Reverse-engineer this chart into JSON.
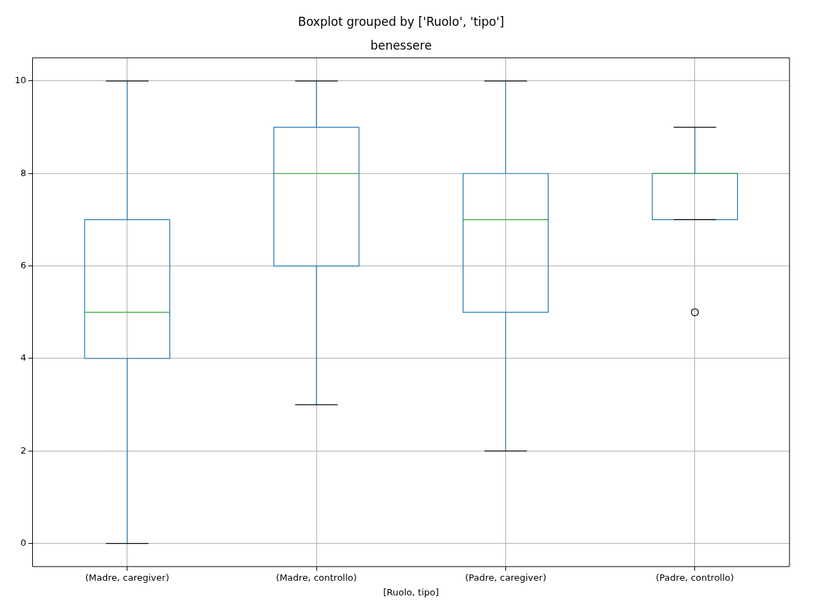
{
  "chart_data": {
    "type": "box",
    "title": "Boxplot grouped by ['Ruolo', 'tipo']",
    "subtitle": "benessere",
    "xlabel": "[Ruolo, tipo]",
    "categories": [
      "(Madre, caregiver)",
      "(Madre, controllo)",
      "(Padre, caregiver)",
      "(Padre, controllo)"
    ],
    "series": [
      {
        "color": "#1f77b4",
        "boxes": [
          {
            "low": 0,
            "q1": 4,
            "median": 5,
            "q3": 7,
            "high": 10
          },
          {
            "low": 3,
            "q1": 6,
            "median": 8,
            "q3": 9,
            "high": 10
          },
          {
            "low": 2,
            "q1": 5,
            "median": 7,
            "q3": 8,
            "high": 10
          },
          {
            "low": 7,
            "q1": 7,
            "median": 8,
            "q3": 8,
            "high": 9,
            "outliers": [
              5
            ]
          }
        ]
      }
    ],
    "ylim": [
      -0.5,
      10.5
    ],
    "yticks": [
      0,
      2,
      4,
      6,
      8,
      10
    ],
    "grid": true,
    "legend": false
  }
}
